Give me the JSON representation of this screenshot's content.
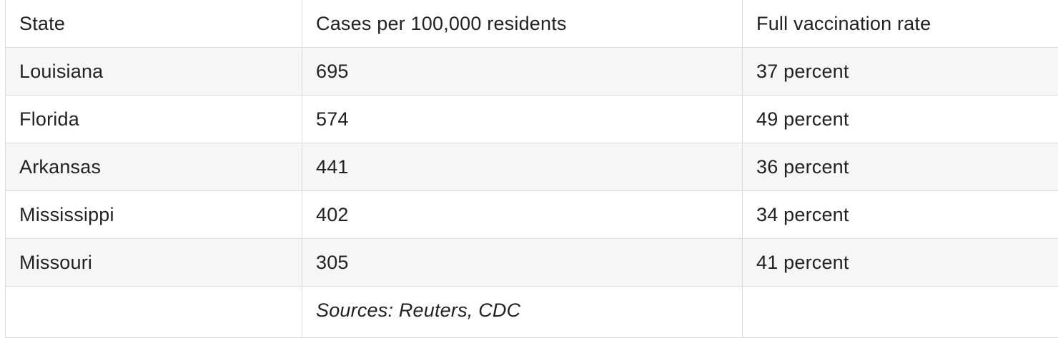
{
  "table": {
    "columns": [
      "State",
      "Cases per 100,000 residents",
      "Full vaccination rate"
    ],
    "rows": [
      [
        "Louisiana",
        "695",
        "37 percent"
      ],
      [
        "Florida",
        "574",
        "49 percent"
      ],
      [
        "Arkansas",
        "441",
        "36 percent"
      ],
      [
        "Mississippi",
        "402",
        "34 percent"
      ],
      [
        "Missouri",
        "305",
        "41 percent"
      ]
    ],
    "source_note": "Sources: Reuters, CDC"
  },
  "colors": {
    "border": "#dcdcdc",
    "shaded_row": "#f6f6f6",
    "text": "#222222"
  }
}
